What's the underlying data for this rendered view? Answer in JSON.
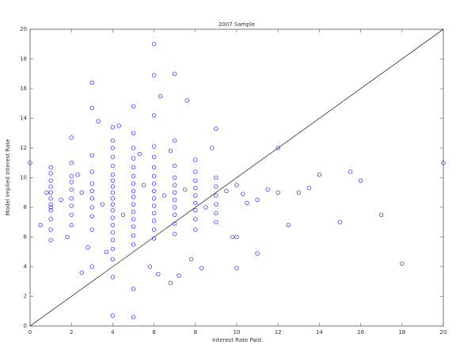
{
  "chart_data": {
    "type": "scatter",
    "title": "2007 Sample",
    "x_label": "Interest Rate Paid",
    "y_label": "Model Implied Interest Rate",
    "color": "#1a1aff",
    "xlim": [
      0,
      20
    ],
    "ylim": [
      0,
      20
    ],
    "xticks": [
      0,
      2,
      4,
      6,
      8,
      10,
      12,
      14,
      16,
      18,
      20
    ],
    "yticks": [
      0,
      2,
      4,
      6,
      8,
      10,
      12,
      14,
      16,
      18,
      20
    ],
    "x": [
      20,
      18,
      17,
      16,
      15.5,
      15,
      14,
      13.5,
      13,
      12.5,
      12,
      12,
      11,
      11,
      10,
      10,
      7,
      6,
      6,
      5,
      4,
      5,
      3,
      0,
      0.5,
      6.8,
      7.2,
      2.5,
      4,
      1,
      1,
      1,
      1,
      1,
      1,
      1,
      1,
      1,
      1,
      1,
      1,
      2,
      2,
      2,
      2,
      2,
      2,
      2,
      2,
      2,
      3,
      3,
      3,
      3,
      3,
      3,
      3,
      3,
      3,
      3,
      4,
      4,
      4,
      4,
      4,
      4,
      4,
      4,
      4,
      4,
      4,
      4,
      4,
      4,
      4,
      4,
      4,
      4,
      5,
      5,
      5,
      5,
      5,
      5,
      5,
      5,
      5,
      5,
      5,
      5,
      5,
      5,
      5,
      6,
      6,
      6,
      6,
      6,
      6,
      6,
      6,
      6,
      6,
      6,
      6,
      6,
      7,
      7,
      7,
      7,
      7,
      7,
      7,
      7,
      7,
      7,
      8,
      8,
      8,
      8,
      8,
      8,
      8,
      8,
      8,
      9,
      9,
      9,
      9,
      9,
      9,
      9,
      1.5,
      2.5,
      3.5,
      4.5,
      5.5,
      6.5,
      7.5,
      8.5,
      9.5,
      10.5,
      10,
      11.5,
      3.3,
      4.3,
      6.3,
      7.6,
      2.8,
      3.7,
      5.8,
      6.2,
      7.8,
      8.3,
      9.8,
      10.3,
      0.8,
      1.8,
      2.3,
      5.3,
      6.8,
      8.8
    ],
    "values": [
      11,
      4.2,
      7.5,
      9.8,
      10.4,
      7,
      10.2,
      9.3,
      9,
      6.8,
      12,
      9,
      8.5,
      4.9,
      3.9,
      6,
      17,
      19,
      16.9,
      2.5,
      0.7,
      0.6,
      16.4,
      11,
      6.8,
      2.9,
      3.4,
      3.6,
      3.3,
      5.8,
      6.5,
      7.2,
      7.8,
      8.2,
      8.6,
      9.0,
      9.4,
      9.8,
      10.3,
      10.7,
      8.0,
      6.8,
      7.5,
      8.1,
      8.6,
      9.2,
      9.7,
      10.1,
      11.0,
      12.7,
      4.0,
      6.5,
      7.4,
      8.0,
      8.6,
      9.1,
      9.6,
      10.4,
      11.5,
      14.7,
      4.5,
      5.2,
      5.8,
      6.3,
      6.8,
      7.3,
      7.8,
      8.2,
      8.6,
      9.0,
      9.4,
      9.8,
      10.2,
      10.8,
      11.4,
      12.0,
      12.5,
      13.4,
      5.5,
      6.1,
      6.7,
      7.2,
      7.7,
      8.2,
      8.7,
      9.1,
      9.6,
      10.1,
      10.7,
      11.3,
      12.0,
      13.0,
      14.8,
      5.9,
      6.5,
      7.1,
      7.6,
      8.1,
      8.6,
      9.1,
      9.6,
      10.1,
      10.7,
      11.4,
      12.1,
      14.2,
      6.2,
      6.9,
      7.5,
      8.0,
      8.5,
      9.0,
      9.5,
      10.0,
      10.8,
      12.5,
      6.5,
      7.2,
      7.8,
      8.3,
      8.8,
      9.3,
      9.8,
      10.4,
      11.2,
      7.0,
      7.6,
      8.2,
      8.8,
      9.4,
      10.0,
      13.3,
      8.5,
      9.0,
      8.2,
      7.5,
      9.5,
      8.8,
      9.2,
      8.0,
      9.1,
      8.3,
      9.5,
      9.2,
      13.8,
      13.5,
      15.5,
      15.2,
      5.3,
      5.0,
      4.0,
      3.5,
      4.5,
      3.9,
      6.0,
      8.9,
      9.0,
      6.0,
      10.2,
      11.6,
      11.8,
      12.0
    ],
    "reference_line": {
      "color": "#333333",
      "x": [
        0,
        20
      ],
      "values": [
        0,
        20
      ]
    }
  }
}
